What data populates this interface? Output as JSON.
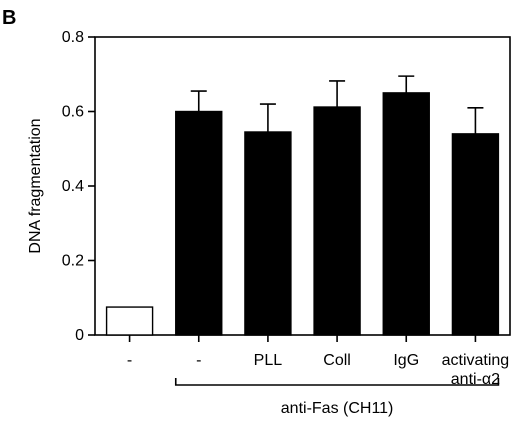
{
  "panel_label": "B",
  "chart_data": {
    "type": "bar",
    "categories": [
      "-",
      "-",
      "PLL",
      "Coll",
      "IgG",
      "activating|anti-α2"
    ],
    "values": [
      0.075,
      0.6,
      0.545,
      0.612,
      0.65,
      0.54
    ],
    "errors": [
      0,
      0.055,
      0.075,
      0.07,
      0.045,
      0.07
    ],
    "bar_fills": [
      "open",
      "filled",
      "filled",
      "filled",
      "filled",
      "filled"
    ],
    "ylabel": "DNA fragmentation",
    "xlabel": "",
    "ylim": [
      0,
      0.8
    ],
    "yticks": [
      0,
      0.2,
      0.4,
      0.6,
      0.8
    ],
    "ytick_labels": [
      "0",
      "0.2",
      "0.4",
      "0.6",
      "0.8"
    ],
    "grid": false,
    "group_bracket": {
      "label": "anti-Fas (CH11)",
      "from_category": 1,
      "to_category": 5
    }
  },
  "colors": {
    "bar_fill": "#000000",
    "open_bar_fill": "#ffffff",
    "axis": "#000000"
  }
}
